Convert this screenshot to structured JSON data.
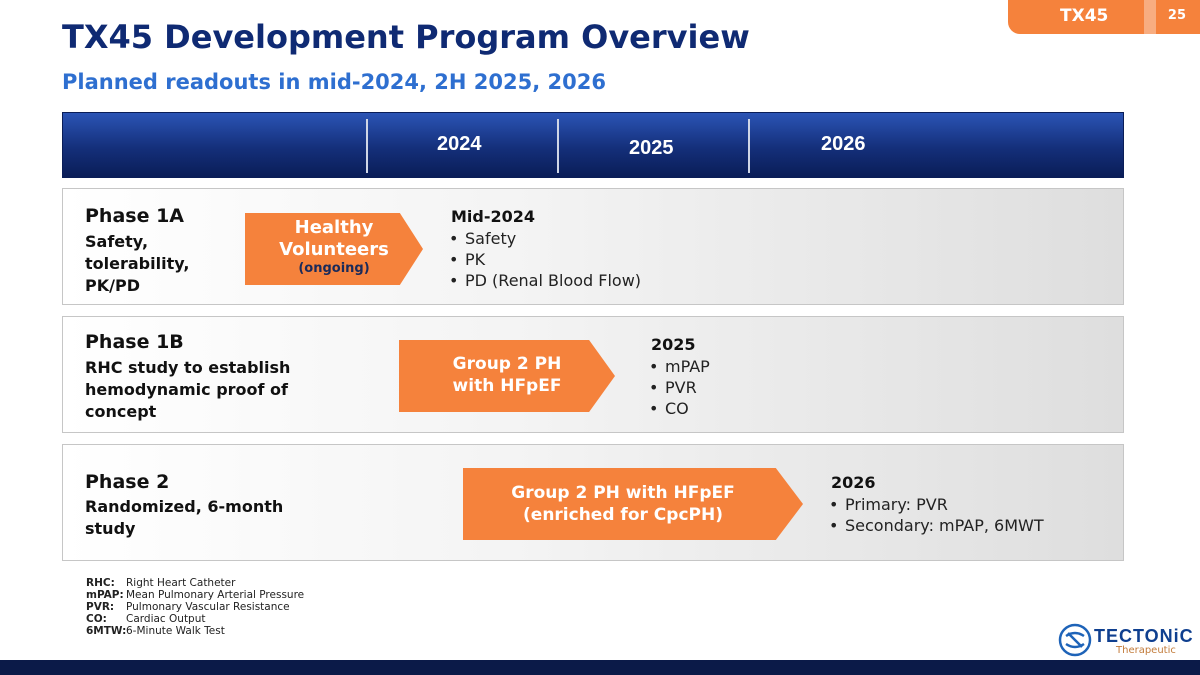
{
  "tag": {
    "name": "TX45",
    "page": "25"
  },
  "title": "TX45 Development Program Overview",
  "subtitle": "Planned readouts in mid-2024, 2H 2025, 2026",
  "timeline": {
    "years": [
      "2024",
      "2025",
      "2026"
    ]
  },
  "rows": [
    {
      "phase": "Phase 1A",
      "description": [
        "Safety,",
        "tolerability,",
        "PK/PD"
      ],
      "arrow": [
        "Healthy",
        "Volunteers",
        "(ongoing)"
      ],
      "readout": "Mid-2024",
      "bullets": [
        "Safety",
        "PK",
        "PD (Renal Blood Flow)"
      ]
    },
    {
      "phase": "Phase 1B",
      "description": [
        "RHC study to establish",
        "hemodynamic proof of",
        "concept"
      ],
      "arrow": [
        "Group 2 PH",
        "with HFpEF"
      ],
      "readout": "2025",
      "bullets": [
        "mPAP",
        "PVR",
        "CO"
      ]
    },
    {
      "phase": "Phase 2",
      "description": [
        "Randomized, 6-month",
        "study"
      ],
      "arrow": [
        "Group 2 PH with HFpEF",
        "(enriched for CpcPH)"
      ],
      "readout": "2026",
      "bullets": [
        "Primary: PVR",
        "Secondary: mPAP, 6MWT"
      ]
    }
  ],
  "abbreviations": [
    {
      "term": "RHC:",
      "definition": "Right Heart Catheter"
    },
    {
      "term": "mPAP:",
      "definition": "Mean Pulmonary Arterial Pressure"
    },
    {
      "term": "PVR:",
      "definition": "Pulmonary Vascular Resistance"
    },
    {
      "term": "CO:",
      "definition": "Cardiac Output"
    },
    {
      "term": "6MTW:",
      "definition": "6-Minute Walk Test"
    }
  ],
  "logo": {
    "name": "TECTONiC",
    "sub": "Therapeutic"
  },
  "colors": {
    "navy": "#0f2a73",
    "accent_blue": "#2e6fd0",
    "orange": "#f5823c"
  }
}
